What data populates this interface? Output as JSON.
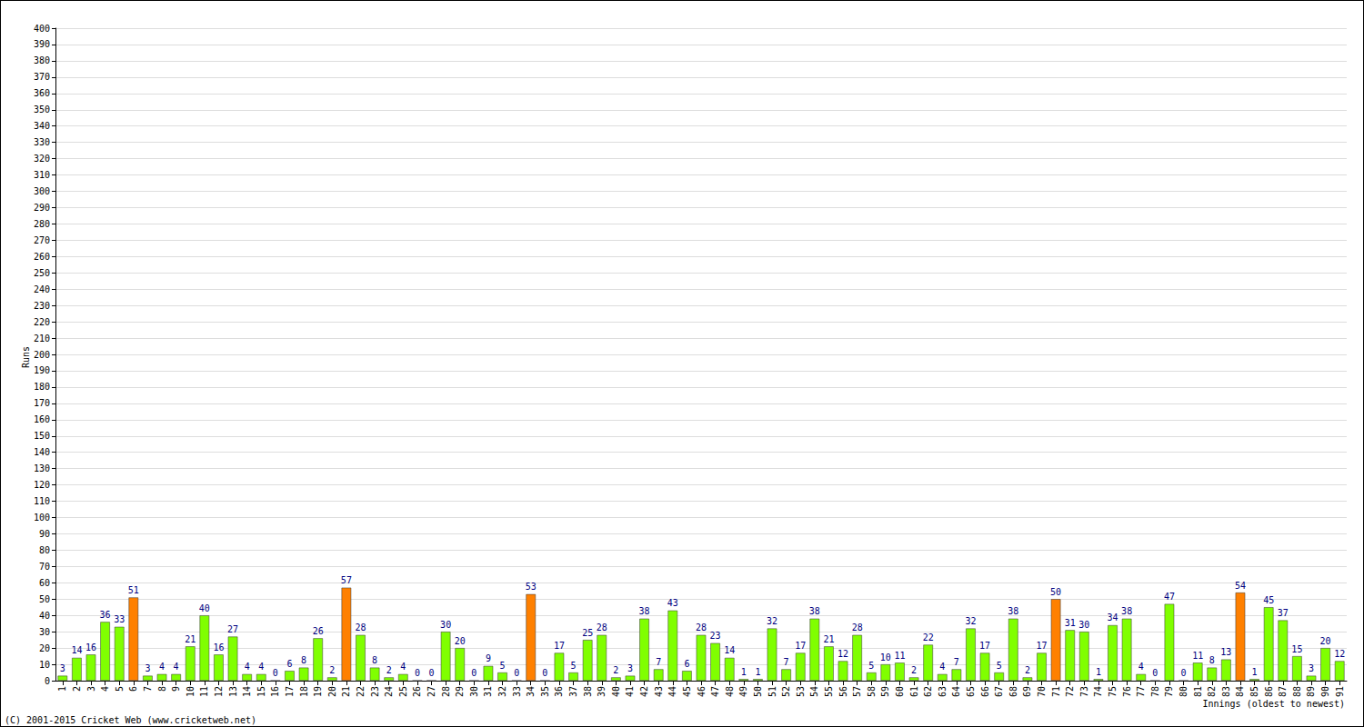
{
  "chart_data": {
    "type": "bar",
    "x_label": "Innings (oldest to newest)",
    "y_label": "Runs",
    "annotations": [
      "(C) 2001-2015 Cricket Web (www.cricketweb.net)"
    ],
    "categories": [
      "1",
      "2",
      "3",
      "4",
      "5",
      "6",
      "7",
      "8",
      "9",
      "10",
      "11",
      "12",
      "13",
      "14",
      "15",
      "16",
      "17",
      "18",
      "19",
      "20",
      "21",
      "22",
      "23",
      "24",
      "25",
      "26",
      "27",
      "28",
      "29",
      "30",
      "31",
      "32",
      "33",
      "34",
      "35",
      "36",
      "37",
      "38",
      "39",
      "40",
      "41",
      "42",
      "43",
      "44",
      "45",
      "46",
      "47",
      "48",
      "49",
      "50",
      "51",
      "52",
      "53",
      "54",
      "55",
      "56",
      "57",
      "58",
      "59",
      "60",
      "61",
      "62",
      "63",
      "64",
      "65",
      "66",
      "67",
      "68",
      "69",
      "70",
      "71",
      "72",
      "73",
      "74",
      "75",
      "76",
      "77",
      "78",
      "79",
      "80",
      "81",
      "82",
      "83",
      "84",
      "85",
      "86",
      "87",
      "88",
      "89",
      "90",
      "91"
    ],
    "values": [
      3,
      14,
      16,
      36,
      33,
      51,
      3,
      4,
      4,
      21,
      40,
      16,
      27,
      4,
      4,
      0,
      6,
      8,
      26,
      2,
      57,
      28,
      8,
      2,
      4,
      0,
      0,
      30,
      20,
      0,
      9,
      5,
      0,
      53,
      0,
      17,
      5,
      25,
      28,
      2,
      3,
      38,
      7,
      43,
      6,
      28,
      23,
      14,
      1,
      1,
      32,
      7,
      17,
      38,
      21,
      12,
      28,
      5,
      10,
      11,
      2,
      22,
      4,
      7,
      32,
      17,
      5,
      38,
      2,
      17,
      50,
      31,
      30,
      1,
      34,
      38,
      4,
      0,
      47,
      0,
      11,
      8,
      13,
      54,
      1,
      45,
      37,
      15,
      3,
      20,
      12
    ],
    "colors": [
      "#80ff00",
      "#80ff00",
      "#80ff00",
      "#80ff00",
      "#80ff00",
      "#ff8000",
      "#80ff00",
      "#80ff00",
      "#80ff00",
      "#80ff00",
      "#80ff00",
      "#80ff00",
      "#80ff00",
      "#80ff00",
      "#80ff00",
      "#80ff00",
      "#80ff00",
      "#80ff00",
      "#80ff00",
      "#80ff00",
      "#ff8000",
      "#80ff00",
      "#80ff00",
      "#80ff00",
      "#80ff00",
      "#80ff00",
      "#80ff00",
      "#80ff00",
      "#80ff00",
      "#80ff00",
      "#80ff00",
      "#80ff00",
      "#80ff00",
      "#ff8000",
      "#80ff00",
      "#80ff00",
      "#80ff00",
      "#80ff00",
      "#80ff00",
      "#80ff00",
      "#80ff00",
      "#80ff00",
      "#80ff00",
      "#80ff00",
      "#80ff00",
      "#80ff00",
      "#80ff00",
      "#80ff00",
      "#80ff00",
      "#80ff00",
      "#80ff00",
      "#80ff00",
      "#80ff00",
      "#80ff00",
      "#80ff00",
      "#80ff00",
      "#80ff00",
      "#80ff00",
      "#80ff00",
      "#80ff00",
      "#80ff00",
      "#80ff00",
      "#80ff00",
      "#80ff00",
      "#80ff00",
      "#80ff00",
      "#80ff00",
      "#80ff00",
      "#80ff00",
      "#80ff00",
      "#ff8000",
      "#80ff00",
      "#80ff00",
      "#80ff00",
      "#80ff00",
      "#80ff00",
      "#80ff00",
      "#80ff00",
      "#80ff00",
      "#80ff00",
      "#80ff00",
      "#80ff00",
      "#80ff00",
      "#ff8000",
      "#80ff00",
      "#80ff00",
      "#80ff00",
      "#80ff00",
      "#80ff00",
      "#80ff00",
      "#80ff00"
    ],
    "ylim": [
      0,
      400
    ],
    "yticks": [
      0,
      10,
      20,
      30,
      40,
      50,
      60,
      70,
      80,
      90,
      100,
      110,
      120,
      130,
      140,
      150,
      160,
      170,
      180,
      190,
      200,
      210,
      220,
      230,
      240,
      250,
      260,
      270,
      280,
      290,
      300,
      310,
      320,
      330,
      340,
      350,
      360,
      370,
      380,
      390,
      400
    ],
    "grid": true,
    "data_labels": true
  }
}
